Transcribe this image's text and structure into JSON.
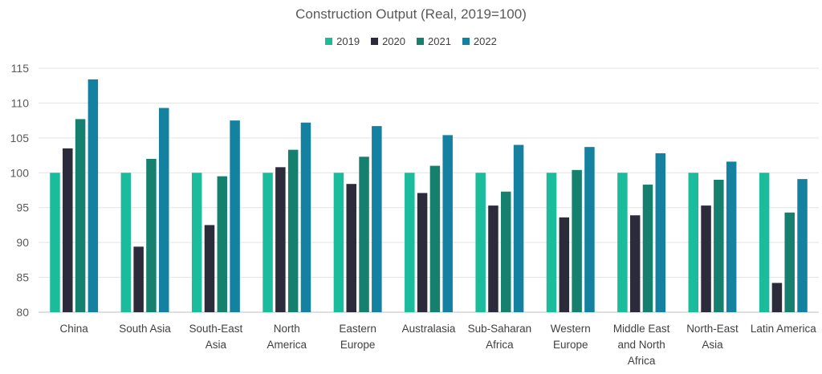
{
  "chart_data": {
    "type": "bar",
    "title": "Construction Output (Real, 2019=100)",
    "xlabel": "",
    "ylabel": "",
    "ylim": [
      80,
      115
    ],
    "yticks": [
      80,
      85,
      90,
      95,
      100,
      105,
      110,
      115
    ],
    "grid": true,
    "legend_position": "top",
    "categories": [
      [
        "China"
      ],
      [
        "South Asia"
      ],
      [
        "South-East",
        "Asia"
      ],
      [
        "North",
        "America"
      ],
      [
        "Eastern",
        "Europe"
      ],
      [
        "Australasia"
      ],
      [
        "Sub-Saharan",
        "Africa"
      ],
      [
        "Western",
        "Europe"
      ],
      [
        "Middle East",
        "and North",
        "Africa"
      ],
      [
        "North-East",
        "Asia"
      ],
      [
        "Latin America"
      ]
    ],
    "series": [
      {
        "name": "2019",
        "color": "#1ABC9C",
        "values": [
          100,
          100,
          100,
          100,
          100,
          100,
          100,
          100,
          100,
          100,
          100
        ]
      },
      {
        "name": "2020",
        "color": "#2B2B3B",
        "values": [
          103.5,
          89.4,
          92.5,
          100.8,
          98.4,
          97.1,
          95.3,
          93.6,
          93.9,
          95.3,
          84.2
        ]
      },
      {
        "name": "2021",
        "color": "#16806F",
        "values": [
          107.7,
          102.0,
          99.5,
          103.3,
          102.3,
          101.0,
          97.3,
          100.4,
          98.3,
          99.0,
          94.3
        ]
      },
      {
        "name": "2022",
        "color": "#1581A0",
        "values": [
          113.4,
          109.3,
          107.5,
          107.2,
          106.7,
          105.4,
          104.0,
          103.7,
          102.8,
          101.6,
          99.1
        ]
      }
    ]
  }
}
